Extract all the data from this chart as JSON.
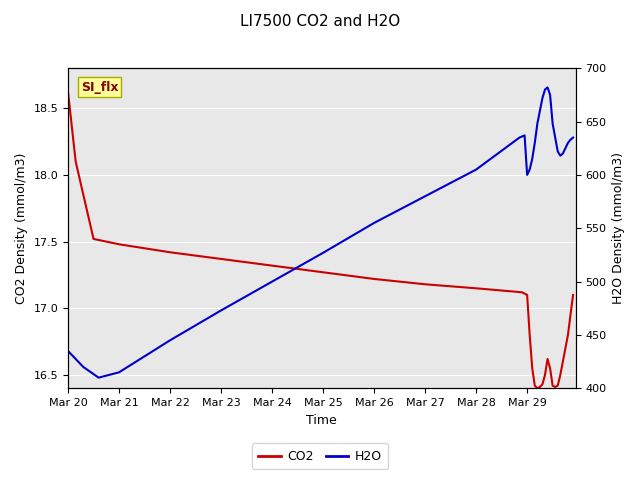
{
  "title": "LI7500 CO2 and H2O",
  "xlabel": "Time",
  "ylabel_left": "CO2 Density (mmol/m3)",
  "ylabel_right": "H2O Density (mmol/m3)",
  "legend_label": "SI_flx",
  "co2_x_days": [
    0.0,
    0.15,
    0.5,
    1.0,
    2.0,
    3.0,
    4.0,
    5.0,
    6.0,
    7.0,
    8.0,
    8.9,
    9.0,
    9.05,
    9.1,
    9.15,
    9.2,
    9.25,
    9.3,
    9.35,
    9.4,
    9.45,
    9.5,
    9.55,
    9.6,
    9.65,
    9.7,
    9.75,
    9.8,
    9.85,
    9.9
  ],
  "co2_y": [
    18.62,
    18.1,
    17.52,
    17.48,
    17.42,
    17.37,
    17.32,
    17.27,
    17.22,
    17.18,
    17.15,
    17.12,
    17.1,
    16.8,
    16.55,
    16.42,
    16.4,
    16.41,
    16.43,
    16.5,
    16.62,
    16.55,
    16.42,
    16.41,
    16.42,
    16.5,
    16.6,
    16.7,
    16.8,
    16.95,
    17.1
  ],
  "h2o_x_days": [
    0.0,
    0.3,
    0.6,
    1.0,
    2.0,
    3.0,
    4.0,
    5.0,
    6.0,
    7.0,
    8.0,
    8.85,
    8.9,
    8.95,
    9.0,
    9.05,
    9.1,
    9.15,
    9.2,
    9.25,
    9.3,
    9.35,
    9.4,
    9.45,
    9.5,
    9.55,
    9.6,
    9.65,
    9.7,
    9.75,
    9.8,
    9.85,
    9.9
  ],
  "h2o_y": [
    435,
    420,
    410,
    415,
    445,
    473,
    500,
    527,
    555,
    580,
    605,
    635,
    636,
    637,
    600,
    605,
    615,
    630,
    648,
    660,
    672,
    680,
    682,
    675,
    648,
    635,
    622,
    618,
    620,
    625,
    630,
    633,
    635
  ],
  "co2_color": "#cc0000",
  "h2o_color": "#0000cc",
  "ylim_left": [
    16.4,
    18.8
  ],
  "ylim_right": [
    400,
    700
  ],
  "bg_color": "#e8e8e8",
  "xtick_days": [
    0,
    1,
    2,
    3,
    4,
    5,
    6,
    7,
    8,
    9
  ],
  "xtick_labels": [
    "Mar 20",
    "Mar 21",
    "Mar 22",
    "Mar 23",
    "Mar 24",
    "Mar 25",
    "Mar 26",
    "Mar 27",
    "Mar 28",
    "Mar 29"
  ],
  "xlim": [
    0,
    9.95
  ],
  "legend_box_color": "#ffff99",
  "legend_box_edge": "#aaaa00",
  "line_width": 1.5,
  "grid_color": "white",
  "grid_lw": 0.8
}
